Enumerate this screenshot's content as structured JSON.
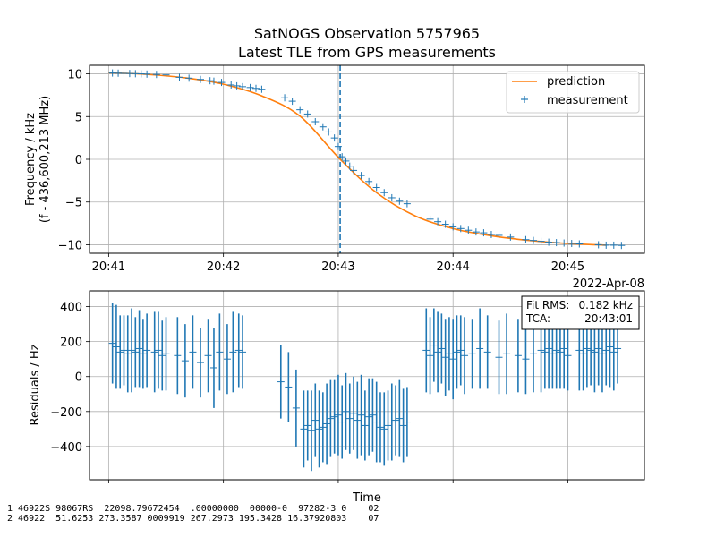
{
  "title": {
    "line1": "SatNOGS Observation 5757965",
    "line2": "Latest TLE from GPS measurements"
  },
  "chart_data": [
    {
      "type": "line",
      "panel": "frequency",
      "ylabel_line1": "Frequency / kHz",
      "ylabel_line2": "(f - 436,600,213 MHz)",
      "xlabel": "",
      "date_label": "2022-Apr-08",
      "xlim": [
        "20:40:50",
        "20:45:40"
      ],
      "ylim": [
        -11,
        11
      ],
      "x_ticks": [
        "20:41",
        "20:42",
        "20:43",
        "20:44",
        "20:45"
      ],
      "y_ticks": [
        "10",
        "5",
        "0",
        "−5",
        "−10"
      ],
      "y_tick_values": [
        10,
        5,
        0,
        -5,
        -10
      ],
      "grid": true,
      "legend_position": "upper right",
      "tca_line": "20:43:01",
      "series": [
        {
          "name": "prediction",
          "style": "line",
          "color": "#ff7f0e",
          "points": [
            [
              "20:41:00",
              10.13
            ],
            [
              "20:41:20",
              9.94
            ],
            [
              "20:41:40",
              9.54
            ],
            [
              "20:42:00",
              8.79
            ],
            [
              "20:42:20",
              7.43
            ],
            [
              "20:42:40",
              5.05
            ],
            [
              "20:43:01",
              0.0
            ],
            [
              "20:43:20",
              -3.9
            ],
            [
              "20:43:40",
              -6.6
            ],
            [
              "20:44:00",
              -8.1
            ],
            [
              "20:44:20",
              -8.95
            ],
            [
              "20:44:40",
              -9.5
            ],
            [
              "20:45:00",
              -9.85
            ],
            [
              "20:45:20",
              -10.05
            ]
          ]
        },
        {
          "name": "measurement",
          "style": "marker",
          "marker": "+",
          "color": "#1f77b4",
          "points": [
            [
              "20:41:02",
              10.1
            ],
            [
              "20:41:05",
              10.08
            ],
            [
              "20:41:08",
              10.06
            ],
            [
              "20:41:11",
              10.04
            ],
            [
              "20:41:14",
              10.02
            ],
            [
              "20:41:17",
              10.0
            ],
            [
              "20:41:20",
              9.97
            ],
            [
              "20:41:25",
              9.93
            ],
            [
              "20:41:30",
              9.88
            ],
            [
              "20:41:37",
              9.6
            ],
            [
              "20:41:42",
              9.5
            ],
            [
              "20:41:48",
              9.35
            ],
            [
              "20:41:53",
              9.2
            ],
            [
              "20:41:55",
              9.15
            ],
            [
              "20:41:59",
              9.0
            ],
            [
              "20:42:04",
              8.7
            ],
            [
              "20:42:07",
              8.6
            ],
            [
              "20:42:10",
              8.5
            ],
            [
              "20:42:14",
              8.4
            ],
            [
              "20:42:17",
              8.3
            ],
            [
              "20:42:20",
              8.2
            ],
            [
              "20:42:32",
              7.2
            ],
            [
              "20:42:36",
              6.8
            ],
            [
              "20:42:40",
              5.8
            ],
            [
              "20:42:44",
              5.3
            ],
            [
              "20:42:48",
              4.4
            ],
            [
              "20:42:52",
              3.8
            ],
            [
              "20:42:55",
              3.2
            ],
            [
              "20:42:58",
              2.5
            ],
            [
              "20:43:00",
              1.5
            ],
            [
              "20:43:02",
              0.3
            ],
            [
              "20:43:04",
              -0.2
            ],
            [
              "20:43:06",
              -0.8
            ],
            [
              "20:43:08",
              -1.3
            ],
            [
              "20:43:12",
              -1.9
            ],
            [
              "20:43:16",
              -2.6
            ],
            [
              "20:43:20",
              -3.3
            ],
            [
              "20:43:24",
              -3.9
            ],
            [
              "20:43:28",
              -4.5
            ],
            [
              "20:43:32",
              -4.9
            ],
            [
              "20:43:36",
              -5.2
            ],
            [
              "20:43:48",
              -7.0
            ],
            [
              "20:43:52",
              -7.3
            ],
            [
              "20:43:56",
              -7.6
            ],
            [
              "20:44:00",
              -7.9
            ],
            [
              "20:44:04",
              -8.1
            ],
            [
              "20:44:08",
              -8.3
            ],
            [
              "20:44:12",
              -8.5
            ],
            [
              "20:44:16",
              -8.6
            ],
            [
              "20:44:20",
              -8.8
            ],
            [
              "20:44:24",
              -8.9
            ],
            [
              "20:44:30",
              -9.1
            ],
            [
              "20:44:38",
              -9.4
            ],
            [
              "20:44:42",
              -9.5
            ],
            [
              "20:44:46",
              -9.6
            ],
            [
              "20:44:50",
              -9.7
            ],
            [
              "20:44:54",
              -9.75
            ],
            [
              "20:44:58",
              -9.8
            ],
            [
              "20:45:02",
              -9.85
            ],
            [
              "20:45:06",
              -9.9
            ],
            [
              "20:45:16",
              -10.0
            ],
            [
              "20:45:20",
              -10.05
            ],
            [
              "20:45:24",
              -10.05
            ],
            [
              "20:45:28",
              -10.08
            ]
          ]
        }
      ]
    },
    {
      "type": "scatter",
      "panel": "residuals",
      "ylabel": "Residuals / Hz",
      "xlabel": "Time",
      "xlim": [
        "20:40:50",
        "20:45:40"
      ],
      "ylim": [
        -590,
        490
      ],
      "x_ticks": [
        "20:41",
        "20:42",
        "20:43",
        "20:44",
        "20:45"
      ],
      "y_ticks": [
        "400",
        "200",
        "0",
        "−200",
        "−400"
      ],
      "y_tick_values": [
        400,
        200,
        0,
        -200,
        -400
      ],
      "grid": true,
      "color": "#1f77b4",
      "info_box": {
        "fit_rms_label": "Fit RMS:",
        "fit_rms_value": "0.182 kHz",
        "tca_label": "TCA:",
        "tca_value": "20:43:01"
      },
      "points": [
        [
          "20:41:02",
          190,
          230
        ],
        [
          "20:41:04",
          170,
          240
        ],
        [
          "20:41:06",
          140,
          210
        ],
        [
          "20:41:08",
          150,
          200
        ],
        [
          "20:41:10",
          130,
          220
        ],
        [
          "20:41:12",
          150,
          240
        ],
        [
          "20:41:14",
          140,
          200
        ],
        [
          "20:41:16",
          160,
          220
        ],
        [
          "20:41:18",
          130,
          200
        ],
        [
          "20:41:20",
          150,
          210
        ],
        [
          "20:41:24",
          140,
          230
        ],
        [
          "20:41:26",
          150,
          220
        ],
        [
          "20:41:28",
          120,
          200
        ],
        [
          "20:41:30",
          130,
          210
        ],
        [
          "20:41:36",
          120,
          220
        ],
        [
          "20:41:40",
          90,
          210
        ],
        [
          "20:41:44",
          140,
          210
        ],
        [
          "20:41:48",
          80,
          200
        ],
        [
          "20:41:52",
          120,
          210
        ],
        [
          "20:41:55",
          50,
          230
        ],
        [
          "20:41:58",
          140,
          220
        ],
        [
          "20:42:02",
          100,
          200
        ],
        [
          "20:42:05",
          140,
          230
        ],
        [
          "20:42:08",
          150,
          210
        ],
        [
          "20:42:10",
          140,
          210
        ],
        [
          "20:42:30",
          -30,
          210
        ],
        [
          "20:42:34",
          -60,
          200
        ],
        [
          "20:42:38",
          -180,
          220
        ],
        [
          "20:42:42",
          -300,
          220
        ],
        [
          "20:42:44",
          -280,
          200
        ],
        [
          "20:42:46",
          -310,
          230
        ],
        [
          "20:42:48",
          -250,
          210
        ],
        [
          "20:42:50",
          -300,
          220
        ],
        [
          "20:42:52",
          -290,
          200
        ],
        [
          "20:42:54",
          -270,
          230
        ],
        [
          "20:42:56",
          -240,
          220
        ],
        [
          "20:42:58",
          -230,
          210
        ],
        [
          "20:43:00",
          -220,
          230
        ],
        [
          "20:43:02",
          -260,
          210
        ],
        [
          "20:43:04",
          -200,
          220
        ],
        [
          "20:43:06",
          -240,
          200
        ],
        [
          "20:43:08",
          -210,
          210
        ],
        [
          "20:43:10",
          -250,
          220
        ],
        [
          "20:43:12",
          -220,
          230
        ],
        [
          "20:43:14",
          -280,
          200
        ],
        [
          "20:43:16",
          -230,
          220
        ],
        [
          "20:43:18",
          -220,
          210
        ],
        [
          "20:43:20",
          -260,
          230
        ],
        [
          "20:43:22",
          -290,
          200
        ],
        [
          "20:43:24",
          -300,
          210
        ],
        [
          "20:43:26",
          -280,
          200
        ],
        [
          "20:43:28",
          -260,
          220
        ],
        [
          "20:43:30",
          -250,
          200
        ],
        [
          "20:43:32",
          -240,
          220
        ],
        [
          "20:43:34",
          -280,
          210
        ],
        [
          "20:43:36",
          -260,
          200
        ],
        [
          "20:43:46",
          150,
          240
        ],
        [
          "20:43:48",
          120,
          220
        ],
        [
          "20:43:50",
          180,
          210
        ],
        [
          "20:43:52",
          140,
          230
        ],
        [
          "20:43:54",
          160,
          200
        ],
        [
          "20:43:56",
          110,
          220
        ],
        [
          "20:43:58",
          130,
          210
        ],
        [
          "20:44:00",
          100,
          230
        ],
        [
          "20:44:02",
          140,
          210
        ],
        [
          "20:44:04",
          150,
          200
        ],
        [
          "20:44:06",
          120,
          220
        ],
        [
          "20:44:10",
          130,
          200
        ],
        [
          "20:44:14",
          160,
          230
        ],
        [
          "20:44:18",
          140,
          210
        ],
        [
          "20:44:24",
          110,
          210
        ],
        [
          "20:44:28",
          130,
          230
        ],
        [
          "20:44:34",
          120,
          210
        ],
        [
          "20:44:38",
          100,
          200
        ],
        [
          "20:44:42",
          130,
          220
        ],
        [
          "20:44:46",
          150,
          240
        ],
        [
          "20:44:48",
          140,
          210
        ],
        [
          "20:44:50",
          160,
          230
        ],
        [
          "20:44:52",
          130,
          200
        ],
        [
          "20:44:54",
          150,
          220
        ],
        [
          "20:44:56",
          140,
          210
        ],
        [
          "20:44:58",
          160,
          230
        ],
        [
          "20:45:00",
          120,
          200
        ],
        [
          "20:45:06",
          150,
          230
        ],
        [
          "20:45:08",
          130,
          210
        ],
        [
          "20:45:10",
          160,
          220
        ],
        [
          "20:45:12",
          150,
          200
        ],
        [
          "20:45:14",
          140,
          230
        ],
        [
          "20:45:16",
          160,
          210
        ],
        [
          "20:45:18",
          130,
          220
        ],
        [
          "20:45:20",
          150,
          200
        ],
        [
          "20:45:22",
          170,
          230
        ],
        [
          "20:45:24",
          140,
          220
        ],
        [
          "20:45:26",
          160,
          200
        ]
      ]
    }
  ],
  "tle": {
    "line1": "1 46922S 98067RS  22098.79672454  .00000000  00000-0  97282-3 0    02",
    "line2": "2 46922  51.6253 273.3587 0009919 267.2973 195.3428 16.37920803    07"
  }
}
